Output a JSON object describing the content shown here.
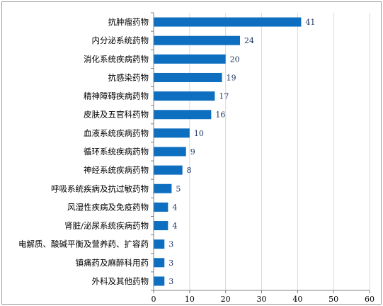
{
  "chart_data": {
    "type": "bar",
    "orientation": "horizontal",
    "categories": [
      "抗肿瘤药物",
      "内分泌系统药物",
      "消化系统疾病药物",
      "抗感染药物",
      "精神障碍疾病药物",
      "皮肤及五官科药物",
      "血液系统疾病药物",
      "循环系统疾病药物",
      "神经系统疾病药物",
      "呼吸系统疾病及抗过敏药物",
      "风湿性疾病及免疫药物",
      "肾脏/泌尿系统疾病药物",
      "电解质、酸碱平衡及营养药、扩容药",
      "镇痛药及麻醉科用药",
      "外科及其他药物"
    ],
    "values": [
      41,
      24,
      20,
      19,
      17,
      16,
      10,
      9,
      8,
      5,
      4,
      4,
      3,
      3,
      3
    ],
    "xlim": [
      0,
      60
    ],
    "xticks": [
      0,
      10,
      20,
      30,
      40,
      50,
      60
    ],
    "grid": true,
    "data_labels": true,
    "colors": {
      "bar": "#0e6fc1",
      "grid": "#d9d9d9",
      "axis": "#7f7f7f",
      "label": "#1f3864",
      "text": "#000000"
    }
  }
}
